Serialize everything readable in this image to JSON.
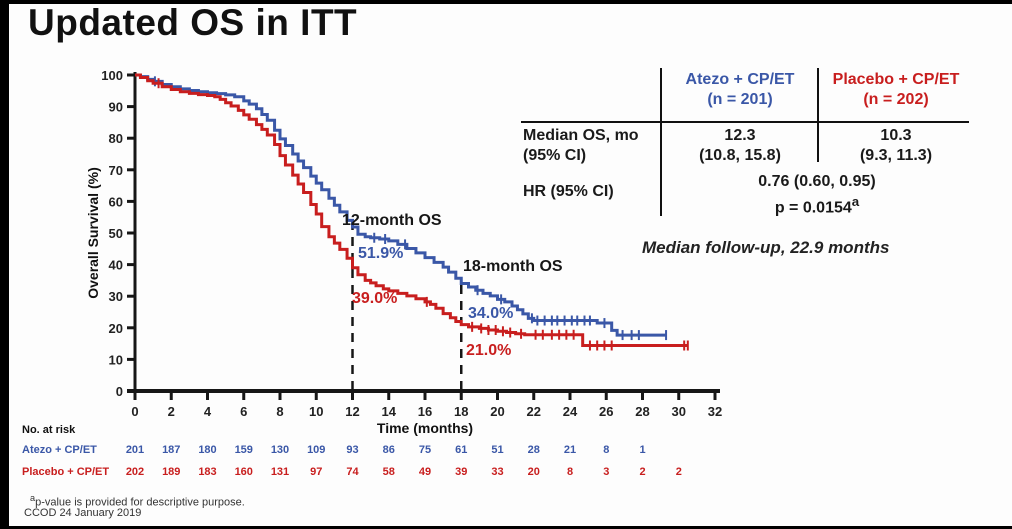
{
  "slide": {
    "title": "Updated OS in ITT",
    "median_followup": "Median follow-up, 22.9 months",
    "footnote_sup": "a",
    "footnote_text": "p-value is provided for descriptive purpose.",
    "footnote_ccod": "CCOD 24 January 2019"
  },
  "colors": {
    "atezo_blue": "#3A57A7",
    "placebo_red": "#C81E1E",
    "axis_black": "#161616"
  },
  "summary_table": {
    "columns": [
      {
        "name": "Atezo + CP/ET",
        "n_label": "(n = 201)"
      },
      {
        "name": "Placebo + CP/ET",
        "n_label": "(n = 202)"
      }
    ],
    "rows": {
      "median": {
        "label_line1": "Median OS, mo",
        "label_line2": "(95% CI)",
        "atezo_line1": "12.3",
        "atezo_line2": "(10.8, 15.8)",
        "placebo_line1": "10.3",
        "placebo_line2": "(9.3, 11.3)"
      },
      "hr": {
        "label": "HR (95% CI)",
        "value_line1": "0.76 (0.60, 0.95)",
        "p_label": "p = 0.0154",
        "p_sup": "a"
      }
    }
  },
  "chart_data": {
    "type": "line",
    "style": "kaplan-meier-step",
    "title": "",
    "xlabel": "Time (months)",
    "ylabel": "Overall Survival (%)",
    "xlim": [
      0,
      32
    ],
    "ylim": [
      0,
      100
    ],
    "xticks": [
      0,
      2,
      4,
      6,
      8,
      10,
      12,
      14,
      16,
      18,
      20,
      22,
      24,
      26,
      28,
      30,
      32
    ],
    "yticks": [
      0,
      10,
      20,
      30,
      40,
      50,
      60,
      70,
      80,
      90,
      100
    ],
    "grid": false,
    "legend_position": "none",
    "dashed_lines": [
      {
        "x": 12,
        "y_top": 52.5
      },
      {
        "x": 18,
        "y_top": 34.0
      }
    ],
    "landmarks": [
      {
        "label": "12-month OS",
        "atezo": "51.9%",
        "placebo": "39.0%"
      },
      {
        "label": "18-month OS",
        "atezo": "34.0%",
        "placebo": "21.0%"
      }
    ],
    "series": [
      {
        "id": "atezo",
        "name": "Atezo + CP/ET",
        "color": "#3A57A7",
        "points": [
          [
            0,
            100
          ],
          [
            0.3,
            99.5
          ],
          [
            0.7,
            98.6
          ],
          [
            1,
            98
          ],
          [
            1.5,
            97
          ],
          [
            2,
            96.3
          ],
          [
            2.5,
            95.6
          ],
          [
            3,
            95.1
          ],
          [
            3.5,
            94.7
          ],
          [
            4,
            94.4
          ],
          [
            4.5,
            94.1
          ],
          [
            5,
            93.7
          ],
          [
            5.5,
            93.1
          ],
          [
            6,
            91.8
          ],
          [
            6.3,
            90.8
          ],
          [
            6.7,
            89.3
          ],
          [
            7,
            87.5
          ],
          [
            7.3,
            85.7
          ],
          [
            7.7,
            82.5
          ],
          [
            8,
            79.8
          ],
          [
            8.3,
            77.7
          ],
          [
            8.7,
            75
          ],
          [
            9,
            72.8
          ],
          [
            9.3,
            70.7
          ],
          [
            9.7,
            68
          ],
          [
            10,
            65.8
          ],
          [
            10.3,
            63.7
          ],
          [
            10.7,
            61
          ],
          [
            11,
            58.8
          ],
          [
            11.3,
            56.7
          ],
          [
            11.7,
            54
          ],
          [
            12,
            51.9
          ],
          [
            12.3,
            49.6
          ],
          [
            12.7,
            48.8
          ],
          [
            13,
            48.5
          ],
          [
            13.5,
            48.1
          ],
          [
            14,
            47.5
          ],
          [
            14.5,
            46.4
          ],
          [
            15,
            45.1
          ],
          [
            15.5,
            43.7
          ],
          [
            16,
            42.2
          ],
          [
            16.5,
            40.7
          ],
          [
            17,
            39.2
          ],
          [
            17.3,
            37.6
          ],
          [
            17.7,
            35.7
          ],
          [
            18,
            34
          ],
          [
            18.4,
            32.9
          ],
          [
            18.8,
            31.9
          ],
          [
            19.2,
            30.9
          ],
          [
            19.6,
            30.1
          ],
          [
            20,
            29
          ],
          [
            20.4,
            28.2
          ],
          [
            20.8,
            26.9
          ],
          [
            21.1,
            25.7
          ],
          [
            21.4,
            24.4
          ],
          [
            21.7,
            23
          ],
          [
            22,
            22.3
          ],
          [
            25.3,
            22.3
          ],
          [
            25.5,
            21.5
          ],
          [
            26.1,
            21.5
          ],
          [
            26.3,
            19.2
          ],
          [
            26.6,
            17.7
          ],
          [
            29.3,
            17.7
          ]
        ],
        "censor_times": [
          1.1,
          13.2,
          13.8,
          14.9,
          18.9,
          20.2,
          21.9,
          22.2,
          22.6,
          23.0,
          23.3,
          23.7,
          24.1,
          24.4,
          24.8,
          25.1,
          25.9,
          26.9,
          27.4,
          27.8,
          29.3
        ]
      },
      {
        "id": "placebo",
        "name": "Placebo + CP/ET",
        "color": "#C81E1E",
        "points": [
          [
            0,
            100
          ],
          [
            0.3,
            99.2
          ],
          [
            0.7,
            98.2
          ],
          [
            1,
            97.4
          ],
          [
            1.5,
            96.3
          ],
          [
            2,
            95.4
          ],
          [
            2.5,
            94.7
          ],
          [
            3,
            94.2
          ],
          [
            3.5,
            93.8
          ],
          [
            4,
            93.5
          ],
          [
            4.4,
            93.1
          ],
          [
            4.7,
            92.3
          ],
          [
            5,
            91.2
          ],
          [
            5.3,
            90.2
          ],
          [
            5.7,
            88.8
          ],
          [
            6,
            87.4
          ],
          [
            6.3,
            86
          ],
          [
            6.7,
            84.3
          ],
          [
            7,
            82.8
          ],
          [
            7.3,
            81
          ],
          [
            7.7,
            78
          ],
          [
            8,
            74.5
          ],
          [
            8.3,
            71.5
          ],
          [
            8.7,
            68.3
          ],
          [
            9,
            65.5
          ],
          [
            9.3,
            62.8
          ],
          [
            9.7,
            59
          ],
          [
            10,
            56
          ],
          [
            10.3,
            52
          ],
          [
            10.7,
            48.8
          ],
          [
            11,
            46.8
          ],
          [
            11.3,
            44.8
          ],
          [
            11.7,
            42
          ],
          [
            12,
            39
          ],
          [
            12.3,
            36.8
          ],
          [
            12.7,
            35
          ],
          [
            13,
            34.2
          ],
          [
            13.3,
            33.3
          ],
          [
            13.7,
            32.3
          ],
          [
            14,
            31.7
          ],
          [
            14.5,
            30.9
          ],
          [
            15,
            30.1
          ],
          [
            15.5,
            29.2
          ],
          [
            16,
            28.2
          ],
          [
            16.3,
            27.4
          ],
          [
            16.6,
            26.2
          ],
          [
            17,
            24.5
          ],
          [
            17.4,
            23.2
          ],
          [
            17.7,
            22
          ],
          [
            18,
            21
          ],
          [
            18.4,
            20.3
          ],
          [
            19,
            19.8
          ],
          [
            19.5,
            19.3
          ],
          [
            20,
            18.9
          ],
          [
            20.5,
            18.5
          ],
          [
            21,
            18.1
          ],
          [
            21.5,
            17.8
          ],
          [
            24.5,
            17.8
          ],
          [
            24.7,
            14.4
          ],
          [
            30.5,
            14.4
          ]
        ],
        "censor_times": [
          1.3,
          16.1,
          18.6,
          19.1,
          19.5,
          19.9,
          20.3,
          20.7,
          21.3,
          22.1,
          22.5,
          23.0,
          23.4,
          23.8,
          24.2,
          25.1,
          25.5,
          25.9,
          26.3,
          30.3,
          30.5
        ]
      }
    ]
  },
  "risk_table": {
    "title": "No. at risk",
    "time_points": [
      0,
      2,
      4,
      6,
      8,
      10,
      12,
      14,
      16,
      18,
      20,
      22,
      24,
      26,
      28,
      30
    ],
    "rows": [
      {
        "id": "atezo",
        "name": "Atezo + CP/ET",
        "color": "#3A57A7",
        "values": [
          201,
          187,
          180,
          159,
          130,
          109,
          93,
          86,
          75,
          61,
          51,
          28,
          21,
          8,
          1
        ]
      },
      {
        "id": "placebo",
        "name": "Placebo + CP/ET",
        "color": "#C81E1E",
        "values": [
          202,
          189,
          183,
          160,
          131,
          97,
          74,
          58,
          49,
          39,
          33,
          20,
          8,
          3,
          2,
          2
        ]
      }
    ]
  }
}
